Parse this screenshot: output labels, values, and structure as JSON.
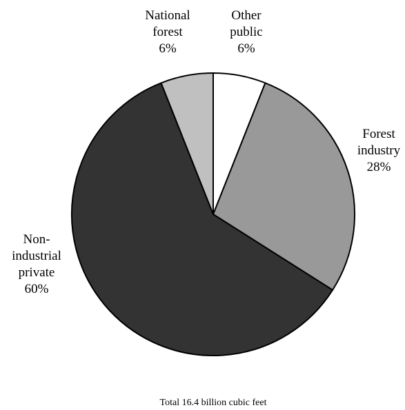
{
  "chart_data": {
    "type": "pie",
    "slices": [
      {
        "name": "Other public",
        "label_lines": [
          "Other",
          "public",
          "6%"
        ],
        "value": 6,
        "color": "#ffffff"
      },
      {
        "name": "Forest industry",
        "label_lines": [
          "Forest",
          "industry",
          "28%"
        ],
        "value": 28,
        "color": "#999999"
      },
      {
        "name": "Non-industrial private",
        "label_lines": [
          "Non-",
          "industrial",
          "private",
          "60%"
        ],
        "value": 60,
        "color": "#333333"
      },
      {
        "name": "National forest",
        "label_lines": [
          "National",
          "forest",
          "6%"
        ],
        "value": 6,
        "color": "#c0c0c0"
      }
    ],
    "start_angle_deg": 0,
    "direction": "clockwise",
    "edge_color": "#000000",
    "footnote": "Total 16.4 billion cubic feet"
  }
}
